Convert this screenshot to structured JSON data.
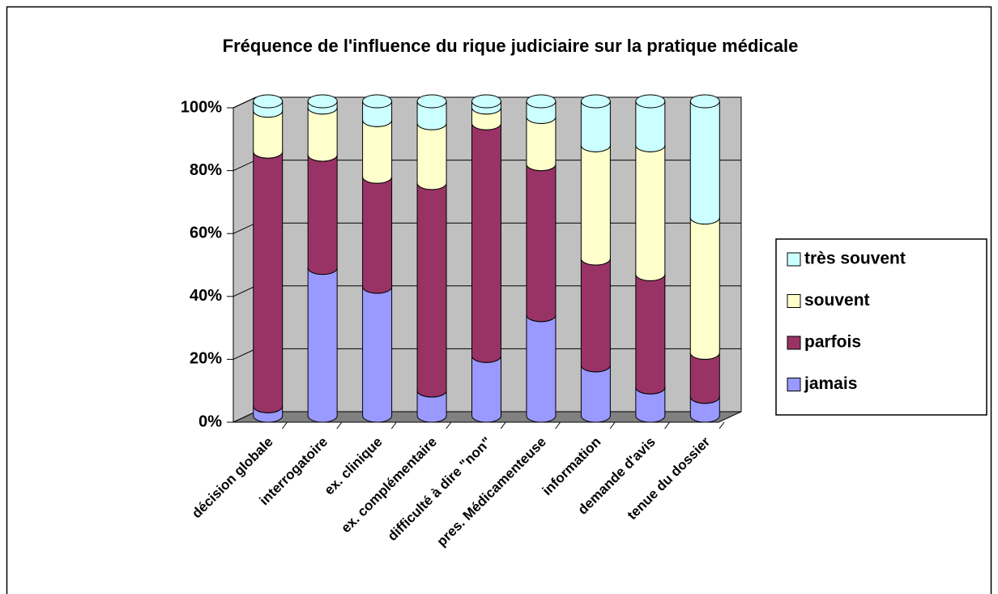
{
  "chart_data": {
    "type": "bar",
    "stacked": true,
    "title": "Fréquence de l'influence du rique judiciaire sur la pratique médicale",
    "categories": [
      "décision globale",
      "interrogatoire",
      "ex. clinique",
      "ex. complémentaire",
      "difficulté à dire \"non\"",
      "pres. Médicamenteuse",
      "information",
      "demande d'avis",
      "tenue du dossier"
    ],
    "series": [
      {
        "name": "jamais",
        "color": "#9999ff",
        "values": [
          3,
          47,
          41,
          8,
          19,
          32,
          16,
          9,
          6
        ]
      },
      {
        "name": "parfois",
        "color": "#993366",
        "values": [
          81,
          36,
          35,
          66,
          74,
          48,
          34,
          36,
          14
        ]
      },
      {
        "name": "souvent",
        "color": "#ffffcc",
        "values": [
          13,
          15,
          18,
          19,
          5,
          15,
          36,
          41,
          43
        ]
      },
      {
        "name": "très souvent",
        "color": "#ccffff",
        "values": [
          3,
          2,
          6,
          7,
          2,
          5,
          14,
          14,
          37
        ]
      }
    ],
    "ylim": [
      0,
      100
    ],
    "yticks": [
      {
        "value": 0,
        "label": "0%"
      },
      {
        "value": 20,
        "label": "20%"
      },
      {
        "value": 40,
        "label": "40%"
      },
      {
        "value": 60,
        "label": "60%"
      },
      {
        "value": 80,
        "label": "80%"
      },
      {
        "value": 100,
        "label": "100%"
      }
    ],
    "grid": true,
    "legend": "right"
  }
}
